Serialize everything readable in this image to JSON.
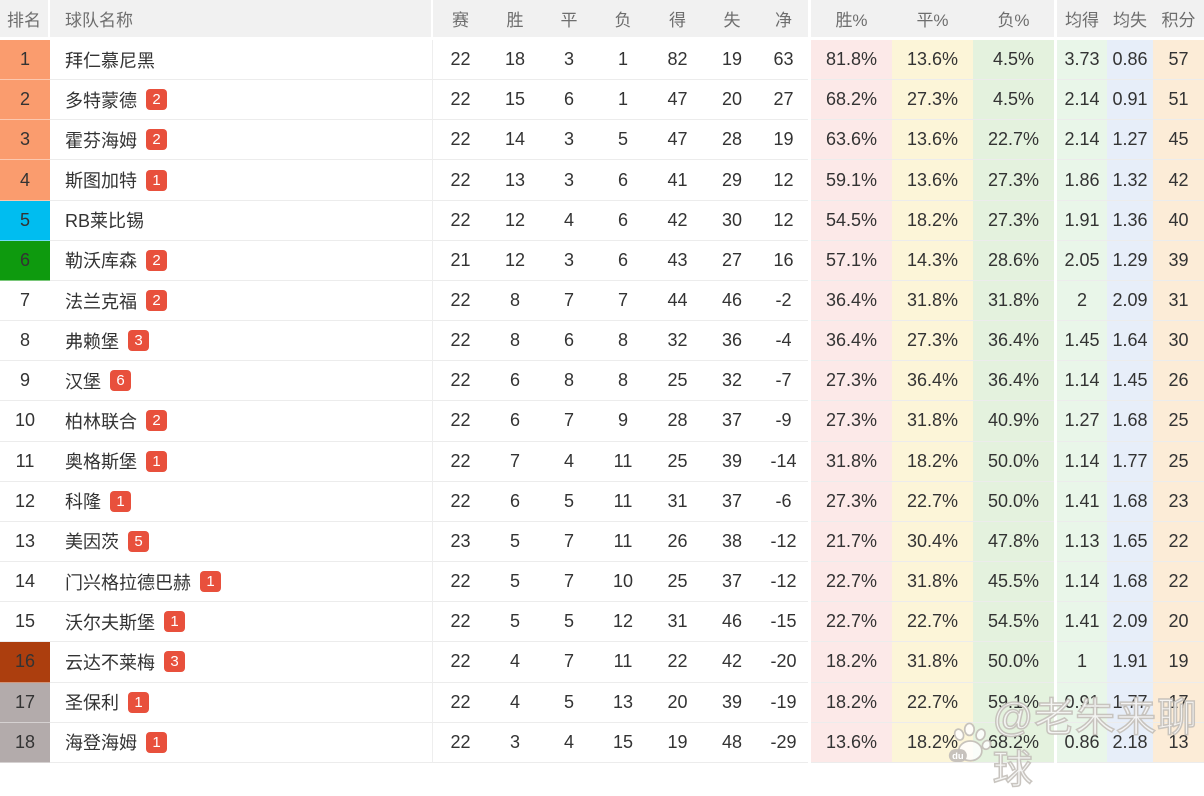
{
  "table": {
    "columns": [
      "排名",
      "球队名称",
      "赛",
      "胜",
      "平",
      "负",
      "得",
      "失",
      "净",
      "胜%",
      "平%",
      "负%",
      "均得",
      "均失",
      "积分"
    ],
    "rows": [
      {
        "rank": "1",
        "rank_bg": "#FA9C6E",
        "team": "拜仁慕尼黑",
        "badge": "",
        "values": [
          "22",
          "18",
          "3",
          "1",
          "82",
          "19",
          "63",
          "81.8%",
          "13.6%",
          "4.5%",
          "3.73",
          "0.86",
          "57"
        ]
      },
      {
        "rank": "2",
        "rank_bg": "#FA9C6E",
        "team": "多特蒙德",
        "badge": "2",
        "values": [
          "22",
          "15",
          "6",
          "1",
          "47",
          "20",
          "27",
          "68.2%",
          "27.3%",
          "4.5%",
          "2.14",
          "0.91",
          "51"
        ]
      },
      {
        "rank": "3",
        "rank_bg": "#FA9C6E",
        "team": "霍芬海姆",
        "badge": "2",
        "values": [
          "22",
          "14",
          "3",
          "5",
          "47",
          "28",
          "19",
          "63.6%",
          "13.6%",
          "22.7%",
          "2.14",
          "1.27",
          "45"
        ]
      },
      {
        "rank": "4",
        "rank_bg": "#FA9C6E",
        "team": "斯图加特",
        "badge": "1",
        "values": [
          "22",
          "13",
          "3",
          "6",
          "41",
          "29",
          "12",
          "59.1%",
          "13.6%",
          "27.3%",
          "1.86",
          "1.32",
          "42"
        ]
      },
      {
        "rank": "5",
        "rank_bg": "#00BDF0",
        "team": "RB莱比锡",
        "badge": "",
        "values": [
          "22",
          "12",
          "4",
          "6",
          "42",
          "30",
          "12",
          "54.5%",
          "18.2%",
          "27.3%",
          "1.91",
          "1.36",
          "40"
        ]
      },
      {
        "rank": "6",
        "rank_bg": "#0E9A0E",
        "team": "勒沃库森",
        "badge": "2",
        "values": [
          "21",
          "12",
          "3",
          "6",
          "43",
          "27",
          "16",
          "57.1%",
          "14.3%",
          "28.6%",
          "2.05",
          "1.29",
          "39"
        ]
      },
      {
        "rank": "7",
        "rank_bg": "",
        "team": "法兰克福",
        "badge": "2",
        "values": [
          "22",
          "8",
          "7",
          "7",
          "44",
          "46",
          "-2",
          "36.4%",
          "31.8%",
          "31.8%",
          "2",
          "2.09",
          "31"
        ]
      },
      {
        "rank": "8",
        "rank_bg": "",
        "team": "弗赖堡",
        "badge": "3",
        "values": [
          "22",
          "8",
          "6",
          "8",
          "32",
          "36",
          "-4",
          "36.4%",
          "27.3%",
          "36.4%",
          "1.45",
          "1.64",
          "30"
        ]
      },
      {
        "rank": "9",
        "rank_bg": "",
        "team": "汉堡",
        "badge": "6",
        "values": [
          "22",
          "6",
          "8",
          "8",
          "25",
          "32",
          "-7",
          "27.3%",
          "36.4%",
          "36.4%",
          "1.14",
          "1.45",
          "26"
        ]
      },
      {
        "rank": "10",
        "rank_bg": "",
        "team": "柏林联合",
        "badge": "2",
        "values": [
          "22",
          "6",
          "7",
          "9",
          "28",
          "37",
          "-9",
          "27.3%",
          "31.8%",
          "40.9%",
          "1.27",
          "1.68",
          "25"
        ]
      },
      {
        "rank": "11",
        "rank_bg": "",
        "team": "奥格斯堡",
        "badge": "1",
        "values": [
          "22",
          "7",
          "4",
          "11",
          "25",
          "39",
          "-14",
          "31.8%",
          "18.2%",
          "50.0%",
          "1.14",
          "1.77",
          "25"
        ]
      },
      {
        "rank": "12",
        "rank_bg": "",
        "team": "科隆",
        "badge": "1",
        "values": [
          "22",
          "6",
          "5",
          "11",
          "31",
          "37",
          "-6",
          "27.3%",
          "22.7%",
          "50.0%",
          "1.41",
          "1.68",
          "23"
        ]
      },
      {
        "rank": "13",
        "rank_bg": "",
        "team": "美因茨",
        "badge": "5",
        "values": [
          "23",
          "5",
          "7",
          "11",
          "26",
          "38",
          "-12",
          "21.7%",
          "30.4%",
          "47.8%",
          "1.13",
          "1.65",
          "22"
        ]
      },
      {
        "rank": "14",
        "rank_bg": "",
        "team": "门兴格拉德巴赫",
        "badge": "1",
        "values": [
          "22",
          "5",
          "7",
          "10",
          "25",
          "37",
          "-12",
          "22.7%",
          "31.8%",
          "45.5%",
          "1.14",
          "1.68",
          "22"
        ]
      },
      {
        "rank": "15",
        "rank_bg": "",
        "team": "沃尔夫斯堡",
        "badge": "1",
        "values": [
          "22",
          "5",
          "5",
          "12",
          "31",
          "46",
          "-15",
          "22.7%",
          "22.7%",
          "54.5%",
          "1.41",
          "2.09",
          "20"
        ]
      },
      {
        "rank": "16",
        "rank_bg": "#AC3E0E",
        "team": "云达不莱梅",
        "badge": "3",
        "values": [
          "22",
          "4",
          "7",
          "11",
          "22",
          "42",
          "-20",
          "18.2%",
          "31.8%",
          "50.0%",
          "1",
          "1.91",
          "19"
        ]
      },
      {
        "rank": "17",
        "rank_bg": "#B3ABAB",
        "team": "圣保利",
        "badge": "1",
        "values": [
          "22",
          "4",
          "5",
          "13",
          "20",
          "39",
          "-19",
          "18.2%",
          "22.7%",
          "59.1%",
          "0.91",
          "1.77",
          "17"
        ]
      },
      {
        "rank": "18",
        "rank_bg": "#B3ABAB",
        "team": "海登海姆",
        "badge": "1",
        "values": [
          "22",
          "3",
          "4",
          "15",
          "19",
          "48",
          "-29",
          "13.6%",
          "18.2%",
          "68.2%",
          "0.86",
          "2.18",
          "13"
        ]
      }
    ]
  },
  "colors": {
    "header_bg": "#F1F1F1",
    "border": "#ECECEC",
    "badge_bg": "#E8503C",
    "rank_top4": "#FA9C6E",
    "rank_fifth": "#00BDF0",
    "rank_sixth": "#0E9A0E",
    "rank_sixteenth": "#AC3E0E",
    "rank_bottom": "#B3ABAB",
    "col_win_pct": "#FCE9E8",
    "col_draw_pct": "#FCF5D8",
    "col_loss_pct": "#E4F2DE",
    "col_avg_gf": "#E9F6E9",
    "col_avg_ga": "#E7EEF9",
    "col_points": "#FCECD7"
  },
  "watermark": {
    "logo": "baidu-paw-icon",
    "logo_text": "du",
    "handle": "@老朱来聊球"
  }
}
